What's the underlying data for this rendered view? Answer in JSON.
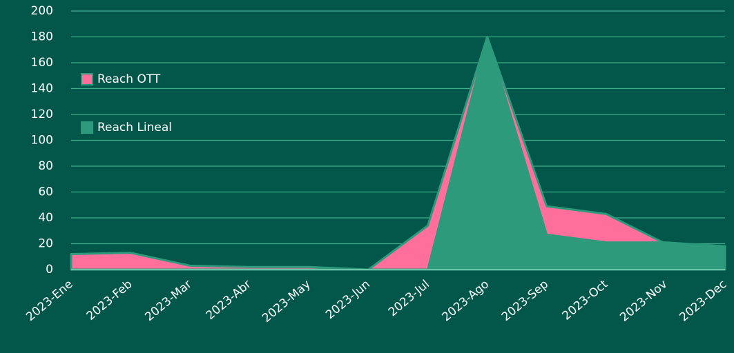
{
  "chart_data": {
    "type": "area",
    "categories": [
      "2023-Ene",
      "2023-Feb",
      "2023-Mar",
      "2023-Abr",
      "2023-May",
      "2023-Jun",
      "2023-Jul",
      "2023-Ago",
      "2023-Sep",
      "2023-Oct",
      "2023-Nov",
      "2023-Dec"
    ],
    "series": [
      {
        "name": "Reach OTT",
        "color": "#ff6f9c",
        "values": [
          12,
          13,
          3,
          2,
          2,
          0,
          34,
          180,
          49,
          43,
          20,
          18
        ]
      },
      {
        "name": "Reach Lineal",
        "color": "#2e9a7c",
        "values": [
          0,
          0,
          0,
          0,
          0,
          0,
          0,
          180,
          27,
          21,
          21,
          18
        ]
      }
    ],
    "ylim": [
      0,
      200
    ],
    "yticks": [
      0,
      20,
      40,
      60,
      80,
      100,
      120,
      140,
      160,
      180,
      200
    ],
    "grid": true
  }
}
